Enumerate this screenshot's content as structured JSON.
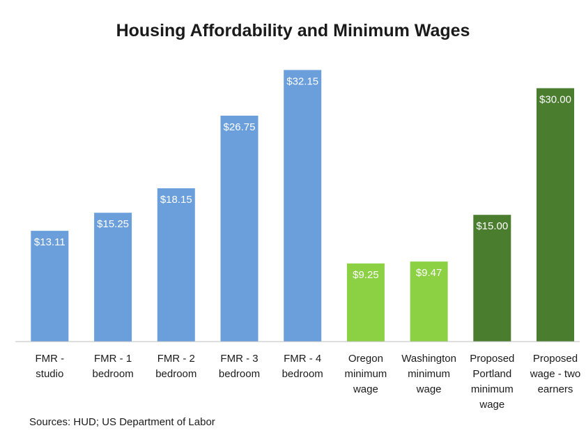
{
  "chart_data": {
    "type": "bar",
    "title": "Housing Affordability and Minimum Wages",
    "categories": [
      [
        "FMR -",
        "studio"
      ],
      [
        "FMR - 1",
        "bedroom"
      ],
      [
        "FMR - 2",
        "bedroom"
      ],
      [
        "FMR - 3",
        "bedroom"
      ],
      [
        "FMR - 4",
        "bedroom"
      ],
      [
        "Oregon",
        "minimum",
        "wage"
      ],
      [
        "Washington",
        "minimum",
        "wage"
      ],
      [
        "Proposed",
        "Portland",
        "minimum",
        "wage"
      ],
      [
        "Proposed",
        "wage - two",
        "earners"
      ]
    ],
    "values": [
      13.11,
      15.25,
      18.15,
      26.75,
      32.15,
      9.25,
      9.47,
      15.0,
      30.0
    ],
    "value_labels": [
      "$13.11",
      "$15.25",
      "$18.15",
      "$26.75",
      "$32.15",
      "$9.25",
      "$9.47",
      "$15.00",
      "$30.00"
    ],
    "colors": [
      "#6a9fdc",
      "#6a9fdc",
      "#6a9fdc",
      "#6a9fdc",
      "#6a9fdc",
      "#8cd044",
      "#8cd044",
      "#4a7d2e",
      "#4a7d2e"
    ],
    "ylim": [
      0,
      34
    ],
    "xlabel": "",
    "ylabel": "",
    "legend": "none",
    "grid": false
  },
  "footer": {
    "source": "Sources: HUD; US Department of Labor"
  }
}
